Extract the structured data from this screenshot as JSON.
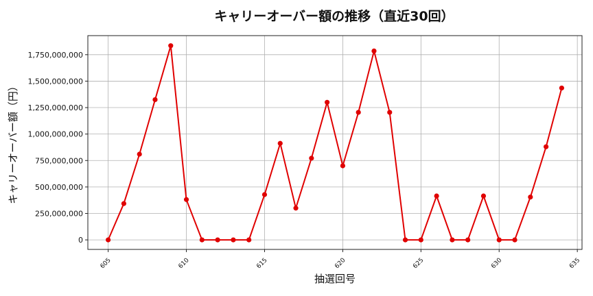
{
  "chart_data": {
    "type": "line",
    "title": "キャリーオーバー額の推移（直近30回）",
    "xlabel": "抽選回号",
    "ylabel": "キャリーオーバー額（円）",
    "x": [
      605,
      606,
      607,
      608,
      609,
      610,
      611,
      612,
      613,
      614,
      615,
      616,
      617,
      618,
      619,
      620,
      621,
      622,
      623,
      624,
      625,
      626,
      627,
      628,
      629,
      630,
      631,
      632,
      633,
      634
    ],
    "series": [
      {
        "values": [
          0,
          343000000,
          810000000,
          1325000000,
          1835000000,
          381000000,
          0,
          0,
          0,
          0,
          428000000,
          912000000,
          300000000,
          772000000,
          1300000000,
          700000000,
          1205000000,
          1785000000,
          1205000000,
          0,
          0,
          415000000,
          0,
          0,
          415000000,
          0,
          0,
          405000000,
          880000000,
          1435000000
        ],
        "color": "#e00000"
      }
    ],
    "xlim": [
      603.7,
      635.3
    ],
    "ylim": [
      -90000000,
      1930000000
    ],
    "x_ticks": [
      605,
      610,
      615,
      620,
      625,
      630,
      635
    ],
    "y_ticks": [
      0,
      250000000,
      500000000,
      750000000,
      1000000000,
      1250000000,
      1500000000,
      1750000000
    ],
    "y_tick_labels": [
      "0",
      "250,000,000",
      "500,000,000",
      "750,000,000",
      "1,000,000,000",
      "1,250,000,000",
      "1,500,000,000",
      "1,750,000,000"
    ],
    "grid": true
  }
}
